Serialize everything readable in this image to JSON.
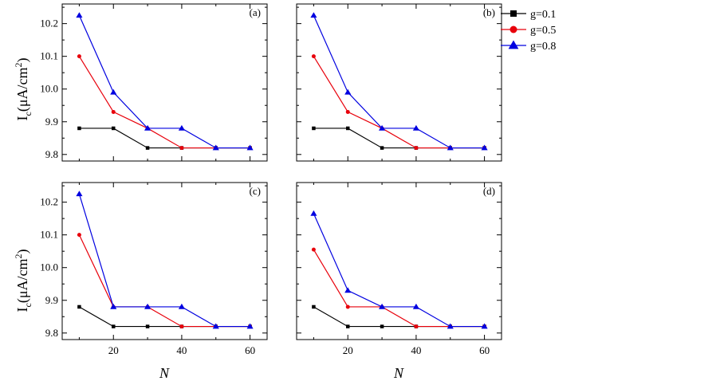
{
  "figure": {
    "ylabel_main": "I",
    "ylabel_sub": "c",
    "ylabel_units": "(μA/cm",
    "ylabel_sup": "2",
    "ylabel_close": ")",
    "xlabel": "N"
  },
  "legend": {
    "entries": [
      {
        "label": "g=0.1",
        "color": "#000000",
        "marker": "square"
      },
      {
        "label": "g=0.5",
        "color": "#e8000b",
        "marker": "circle"
      },
      {
        "label": "g=0.8",
        "color": "#0000e0",
        "marker": "triangle"
      }
    ],
    "placement": "right of panel (b)"
  },
  "chart_data": [
    {
      "type": "line",
      "panel": "(a)",
      "xlabel": "",
      "ylabel": "Ic (μA/cm2)",
      "xlim": [
        5,
        65
      ],
      "ylim": [
        9.78,
        10.26
      ],
      "xticks": [],
      "yticks": [
        9.8,
        9.9,
        10.0,
        10.1,
        10.2
      ],
      "ytick_labels": [
        "9.8",
        "9.9",
        "10.0",
        "10.1",
        "10.2"
      ],
      "x": [
        10,
        20,
        30,
        40,
        50,
        60
      ],
      "series": [
        {
          "name": "g=0.1",
          "values": [
            9.88,
            9.88,
            9.82,
            9.82,
            9.82,
            9.82
          ]
        },
        {
          "name": "g=0.5",
          "values": [
            10.1,
            9.93,
            9.88,
            9.82,
            9.82,
            9.82
          ]
        },
        {
          "name": "g=0.8",
          "values": [
            10.225,
            9.99,
            9.88,
            9.88,
            9.82,
            9.82
          ]
        }
      ]
    },
    {
      "type": "line",
      "panel": "(b)",
      "xlabel": "",
      "ylabel": "",
      "xlim": [
        5,
        65
      ],
      "ylim": [
        9.78,
        10.26
      ],
      "xticks": [],
      "yticks": [],
      "ytick_labels": [],
      "x": [
        10,
        20,
        30,
        40,
        50,
        60
      ],
      "series": [
        {
          "name": "g=0.1",
          "values": [
            9.88,
            9.88,
            9.82,
            9.82,
            9.82,
            9.82
          ]
        },
        {
          "name": "g=0.5",
          "values": [
            10.1,
            9.93,
            9.88,
            9.82,
            9.82,
            9.82
          ]
        },
        {
          "name": "g=0.8",
          "values": [
            10.225,
            9.99,
            9.88,
            9.88,
            9.82,
            9.82
          ]
        }
      ]
    },
    {
      "type": "line",
      "panel": "(c)",
      "xlabel": "N",
      "ylabel": "Ic (μA/cm2)",
      "xlim": [
        5,
        65
      ],
      "ylim": [
        9.78,
        10.26
      ],
      "xticks": [
        20,
        40,
        60
      ],
      "xtick_labels": [
        "20",
        "40",
        "60"
      ],
      "yticks": [
        9.8,
        9.9,
        10.0,
        10.1,
        10.2
      ],
      "ytick_labels": [
        "9.8",
        "9.9",
        "10.0",
        "10.1",
        "10.2"
      ],
      "x": [
        10,
        20,
        30,
        40,
        50,
        60
      ],
      "series": [
        {
          "name": "g=0.1",
          "values": [
            9.88,
            9.82,
            9.82,
            9.82,
            9.82,
            9.82
          ]
        },
        {
          "name": "g=0.5",
          "values": [
            10.1,
            9.88,
            9.88,
            9.82,
            9.82,
            9.82
          ]
        },
        {
          "name": "g=0.8",
          "values": [
            10.225,
            9.88,
            9.88,
            9.88,
            9.82,
            9.82
          ]
        }
      ]
    },
    {
      "type": "line",
      "panel": "(d)",
      "xlabel": "N",
      "ylabel": "",
      "xlim": [
        5,
        65
      ],
      "ylim": [
        9.78,
        10.26
      ],
      "xticks": [
        20,
        40,
        60
      ],
      "xtick_labels": [
        "20",
        "40",
        "60"
      ],
      "yticks": [],
      "ytick_labels": [],
      "x": [
        10,
        20,
        30,
        40,
        50,
        60
      ],
      "series": [
        {
          "name": "g=0.1",
          "values": [
            9.88,
            9.82,
            9.82,
            9.82,
            9.82,
            9.82
          ]
        },
        {
          "name": "g=0.5",
          "values": [
            10.055,
            9.88,
            9.88,
            9.82,
            9.82,
            9.82
          ]
        },
        {
          "name": "g=0.8",
          "values": [
            10.165,
            9.93,
            9.88,
            9.88,
            9.82,
            9.82
          ]
        }
      ]
    }
  ]
}
